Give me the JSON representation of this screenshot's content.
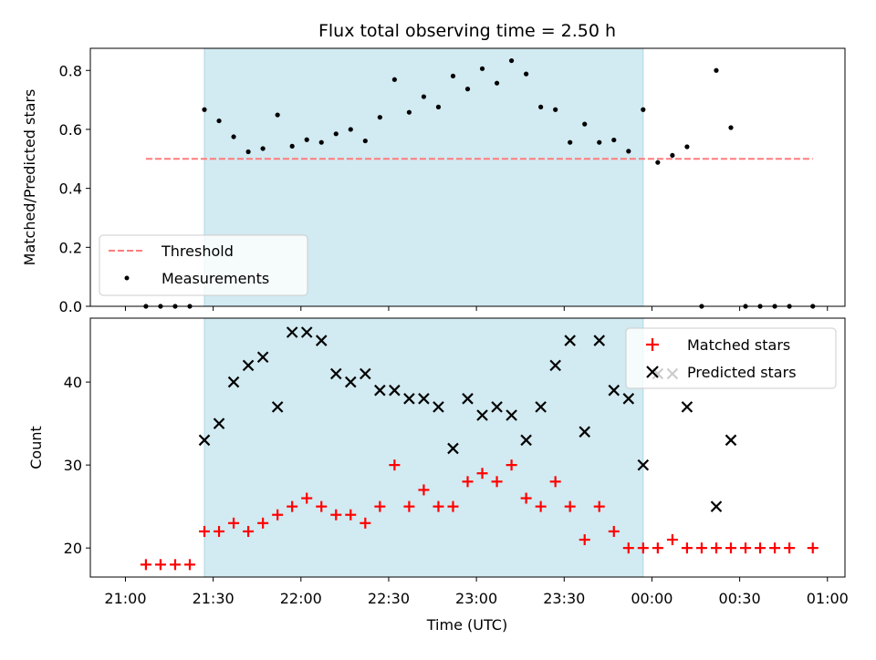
{
  "chart_data": [
    {
      "type": "scatter",
      "title": "Flux total observing time = 2.50 h",
      "xlabel": "",
      "ylabel": "Matched/Predicted stars",
      "ylim": [
        0,
        0.875
      ],
      "yticks": [
        "0.0",
        "0.2",
        "0.4",
        "0.6",
        "0.8"
      ],
      "shaded_span": [
        "21:27",
        "23:57"
      ],
      "shade_color": "#add8e6",
      "threshold": {
        "name": "Threshold",
        "value": 0.5,
        "x_range": [
          "21:07",
          "00:55"
        ],
        "color": "#ff7b7b"
      },
      "series": [
        {
          "name": "Measurements",
          "color": "#000000",
          "x": [
            "21:07",
            "21:12",
            "21:17",
            "21:22",
            "21:27",
            "21:32",
            "21:37",
            "21:42",
            "21:47",
            "21:52",
            "21:57",
            "22:02",
            "22:07",
            "22:12",
            "22:17",
            "22:22",
            "22:27",
            "22:32",
            "22:37",
            "22:42",
            "22:47",
            "22:52",
            "22:57",
            "23:02",
            "23:07",
            "23:12",
            "23:17",
            "23:22",
            "23:27",
            "23:32",
            "23:37",
            "23:42",
            "23:47",
            "23:52",
            "23:57",
            "00:02",
            "00:07",
            "00:12",
            "00:17",
            "00:22",
            "00:27",
            "00:32",
            "00:37",
            "00:42",
            "00:47",
            "00:55"
          ],
          "y": [
            0,
            0,
            0,
            0,
            0.667,
            0.629,
            0.575,
            0.524,
            0.535,
            0.649,
            0.543,
            0.565,
            0.556,
            0.585,
            0.6,
            0.561,
            0.641,
            0.769,
            0.658,
            0.711,
            0.676,
            0.781,
            0.737,
            0.806,
            0.757,
            0.833,
            0.788,
            0.676,
            0.667,
            0.556,
            0.618,
            0.556,
            0.564,
            0.526,
            0.667,
            0.488,
            0.512,
            0.541,
            0,
            0.8,
            0.606,
            0,
            0,
            0,
            0,
            0
          ]
        }
      ],
      "legend_position": "lower-left"
    },
    {
      "type": "scatter",
      "xlabel": "Time (UTC)",
      "ylabel": "Count",
      "ylim": [
        16.5,
        47.7
      ],
      "yticks": [
        "20",
        "30",
        "40"
      ],
      "xticks": [
        "21:00",
        "21:30",
        "22:00",
        "22:30",
        "23:00",
        "23:30",
        "00:00",
        "00:30",
        "01:00"
      ],
      "shaded_span": [
        "21:27",
        "23:57"
      ],
      "series": [
        {
          "name": "Matched stars",
          "marker": "+",
          "color": "#ff0000",
          "x": [
            "21:07",
            "21:12",
            "21:17",
            "21:22",
            "21:27",
            "21:32",
            "21:37",
            "21:42",
            "21:47",
            "21:52",
            "21:57",
            "22:02",
            "22:07",
            "22:12",
            "22:17",
            "22:22",
            "22:27",
            "22:32",
            "22:37",
            "22:42",
            "22:47",
            "22:52",
            "22:57",
            "23:02",
            "23:07",
            "23:12",
            "23:17",
            "23:22",
            "23:27",
            "23:32",
            "23:37",
            "23:42",
            "23:47",
            "23:52",
            "23:57",
            "00:02",
            "00:07",
            "00:12",
            "00:17",
            "00:22",
            "00:27",
            "00:32",
            "00:37",
            "00:42",
            "00:47",
            "00:55"
          ],
          "y": [
            18,
            18,
            18,
            18,
            22,
            22,
            23,
            22,
            23,
            24,
            25,
            26,
            25,
            24,
            24,
            23,
            25,
            30,
            25,
            27,
            25,
            25,
            28,
            29,
            28,
            30,
            26,
            25,
            28,
            25,
            21,
            25,
            22,
            20,
            20,
            20,
            21,
            20,
            20,
            20,
            20,
            20,
            20,
            20,
            20,
            20
          ]
        },
        {
          "name": "Predicted stars",
          "marker": "x",
          "color": "#000000",
          "x": [
            "21:27",
            "21:32",
            "21:37",
            "21:42",
            "21:47",
            "21:52",
            "21:57",
            "22:02",
            "22:07",
            "22:12",
            "22:17",
            "22:22",
            "22:27",
            "22:32",
            "22:37",
            "22:42",
            "22:47",
            "22:52",
            "22:57",
            "23:02",
            "23:07",
            "23:12",
            "23:17",
            "23:22",
            "23:27",
            "23:32",
            "23:37",
            "23:42",
            "23:47",
            "23:52",
            "23:57",
            "00:02",
            "00:07",
            "00:12",
            "00:22",
            "00:27"
          ],
          "y": [
            33,
            35,
            40,
            42,
            43,
            37,
            46,
            46,
            45,
            41,
            40,
            41,
            39,
            39,
            38,
            38,
            37,
            32,
            38,
            36,
            37,
            36,
            33,
            37,
            42,
            45,
            34,
            45,
            39,
            38,
            30,
            41,
            41,
            37,
            25,
            33
          ]
        }
      ],
      "legend_position": "upper-right"
    }
  ]
}
